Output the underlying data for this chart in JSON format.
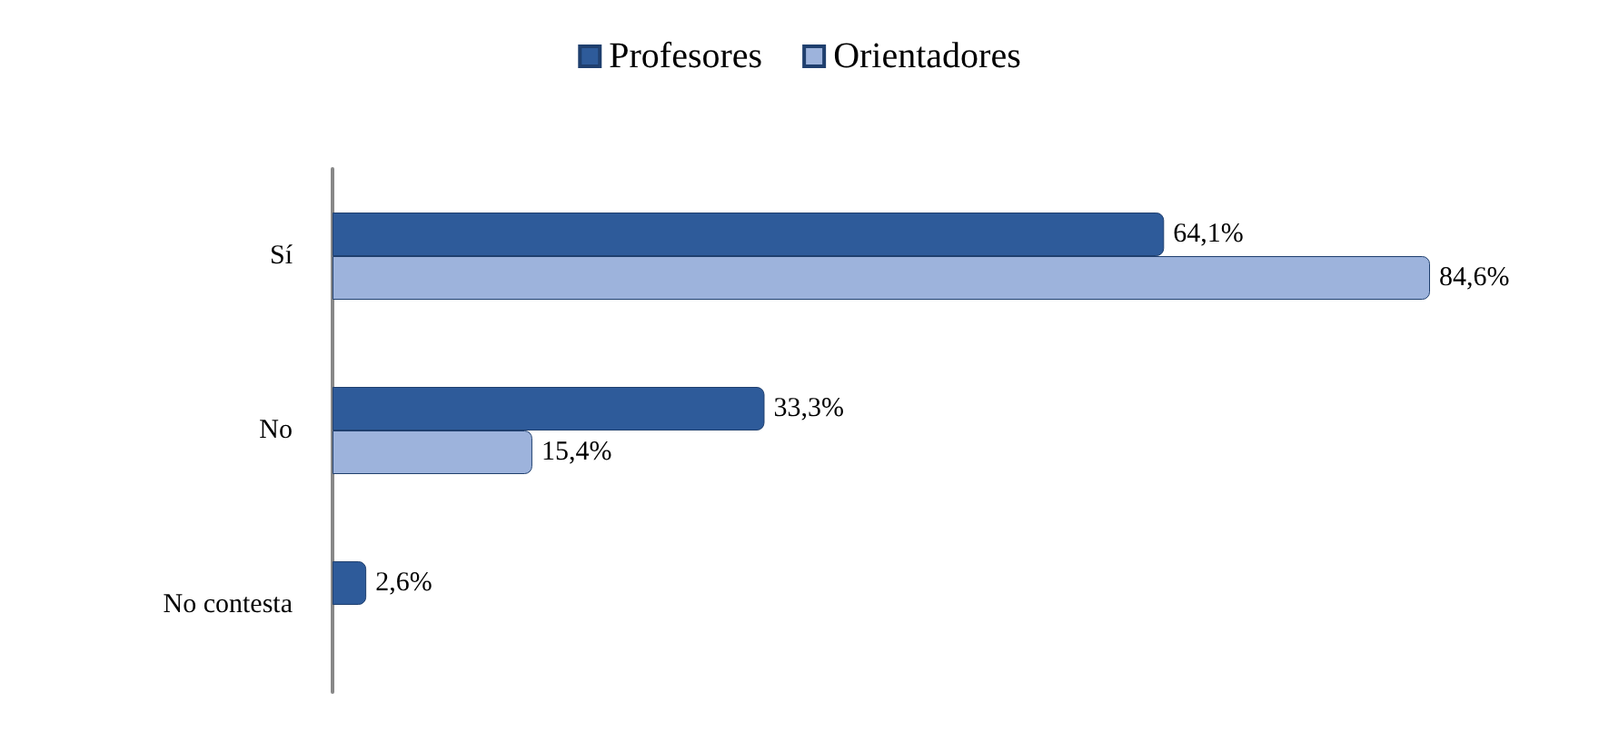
{
  "chart_data": {
    "type": "bar",
    "orientation": "horizontal",
    "categories": [
      "Sí",
      "No",
      "No contesta"
    ],
    "series": [
      {
        "name": "Profesores",
        "color": "#2e5b9a",
        "values": [
          64.1,
          33.3,
          2.6
        ],
        "value_labels": [
          "64,1%",
          "33,3%",
          "2,6%"
        ]
      },
      {
        "name": "Orientadores",
        "color": "#9db3dc",
        "values": [
          84.6,
          15.4,
          null
        ],
        "value_labels": [
          "84,6%",
          "15,4%",
          null
        ]
      }
    ],
    "legend": "top"
  }
}
